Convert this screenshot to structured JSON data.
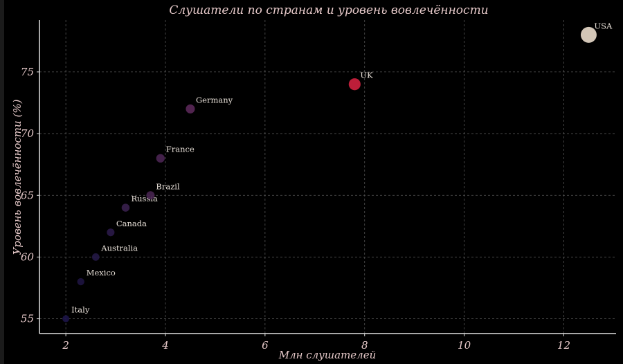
{
  "chart_data": {
    "type": "scatter",
    "title": "Слушатели по странам и уровень вовлечённости",
    "xlabel": "Млн слушателей",
    "ylabel": "Уровень вовлечённости (%)",
    "xlim": [
      1.47,
      13.05
    ],
    "ylim": [
      53.8,
      79.2
    ],
    "xticks": [
      2,
      4,
      6,
      8,
      10,
      12
    ],
    "yticks": [
      55,
      60,
      65,
      70,
      75
    ],
    "grid": true,
    "points": [
      {
        "label": "Italy",
        "x": 2.0,
        "y": 55,
        "color": "#1c1448"
      },
      {
        "label": "Mexico",
        "x": 2.3,
        "y": 58,
        "color": "#1e1440"
      },
      {
        "label": "Australia",
        "x": 2.6,
        "y": 60,
        "color": "#231845"
      },
      {
        "label": "Canada",
        "x": 2.9,
        "y": 62,
        "color": "#2a1a48"
      },
      {
        "label": "Russia",
        "x": 3.2,
        "y": 64,
        "color": "#38204c"
      },
      {
        "label": "Brazil",
        "x": 3.7,
        "y": 65,
        "color": "#46244f"
      },
      {
        "label": "France",
        "x": 3.9,
        "y": 68,
        "color": "#4a2552"
      },
      {
        "label": "Germany",
        "x": 4.5,
        "y": 72,
        "color": "#5a2858"
      },
      {
        "label": "UK",
        "x": 7.8,
        "y": 74,
        "color": "#d0213f"
      },
      {
        "label": "USA",
        "x": 12.5,
        "y": 78,
        "color": "#eadccb"
      }
    ]
  }
}
